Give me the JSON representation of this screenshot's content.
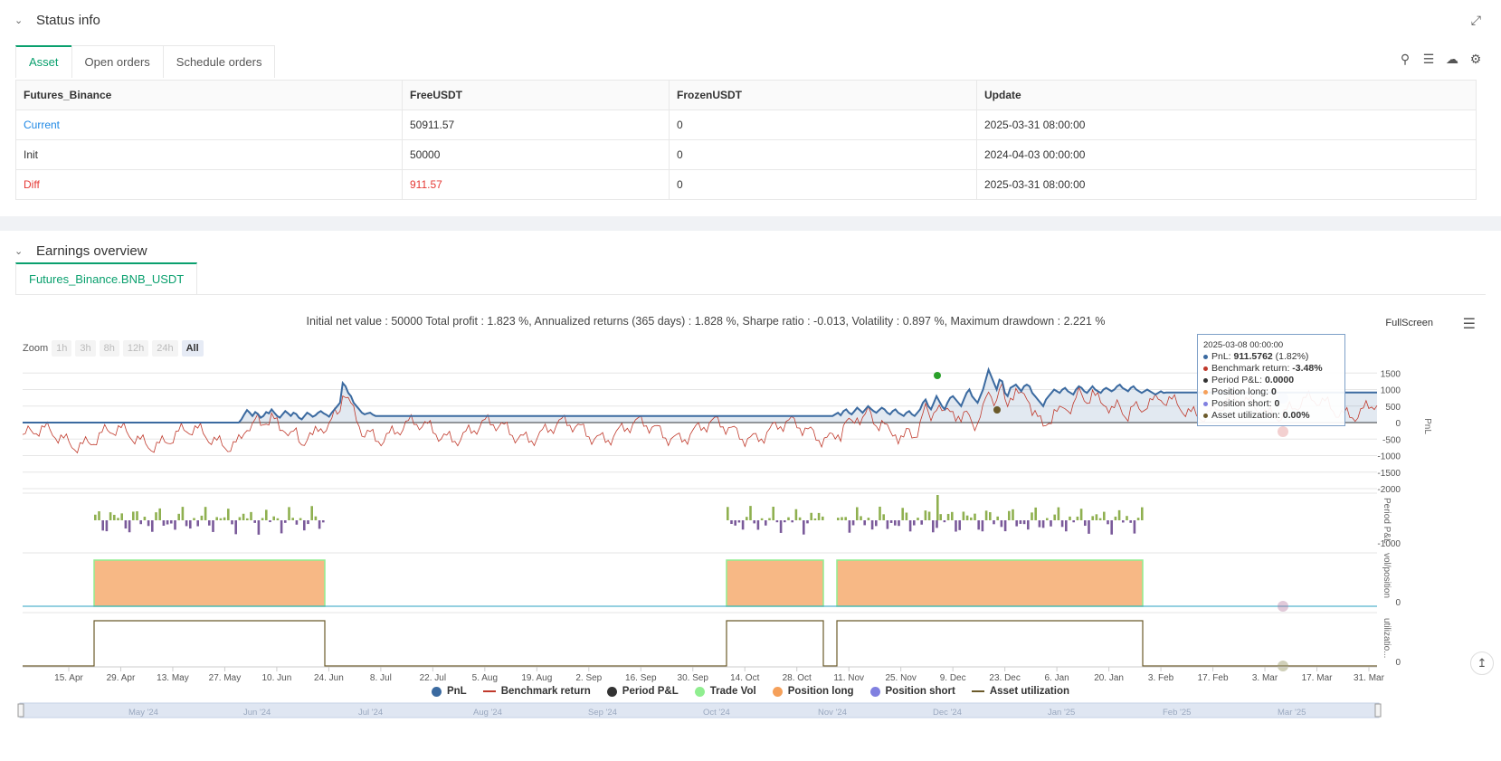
{
  "status_panel": {
    "title": "Status info",
    "tabs": [
      "Asset",
      "Open orders",
      "Schedule orders"
    ],
    "table": {
      "headers": [
        "Futures_Binance",
        "FreeUSDT",
        "FrozenUSDT",
        "Update"
      ],
      "rows": [
        [
          "Current",
          "50911.57",
          "0",
          "2025-03-31 08:00:00"
        ],
        [
          "Init",
          "50000",
          "0",
          "2024-04-03 00:00:00"
        ],
        [
          "Diff",
          "911.57",
          "0",
          "2025-03-31 08:00:00"
        ]
      ]
    },
    "icons": [
      "search-icon",
      "list-icon",
      "cloud-icon",
      "gear-icon"
    ]
  },
  "earnings_panel": {
    "title": "Earnings overview",
    "tab": "Futures_Binance.BNB_USDT",
    "summary": "Initial net value : 50000 Total profit : 1.823 %, Annualized returns (365 days) : 1.828 %, Sharpe ratio : -0.013, Volatility : 0.897 %, Maximum drawdown : 2.221 %",
    "fullscreen_label": "FullScreen",
    "zoom": {
      "label": "Zoom",
      "options": [
        "1h",
        "3h",
        "8h",
        "12h",
        "24h",
        "All"
      ],
      "selected": "All"
    },
    "tooltip": {
      "date": "2025-03-08 00:00:00",
      "rows": [
        {
          "label": "PnL: ",
          "value": "911.5762",
          "extra": " (1.82%)",
          "color": "#3b6aa0"
        },
        {
          "label": "Benchmark return: ",
          "value": "-3.48%",
          "extra": "",
          "color": "#c0392b"
        },
        {
          "label": "Period P&L: ",
          "value": "0.0000",
          "extra": "",
          "color": "#333333"
        },
        {
          "label": "Position long: ",
          "value": "0",
          "extra": "",
          "color": "#f5a05a"
        },
        {
          "label": "Position short: ",
          "value": "0",
          "extra": "",
          "color": "#8080e0"
        },
        {
          "label": "Asset utilization: ",
          "value": "0.00%",
          "extra": "",
          "color": "#6b5a2a"
        }
      ]
    },
    "legend": [
      {
        "label": "PnL",
        "kind": "circle",
        "color": "#3b6aa0"
      },
      {
        "label": "Benchmark return",
        "kind": "line",
        "color": "#c0392b"
      },
      {
        "label": "Period P&L",
        "kind": "circle",
        "color": "#333333"
      },
      {
        "label": "Trade Vol",
        "kind": "circle",
        "color": "#90ee90"
      },
      {
        "label": "Position long",
        "kind": "circle",
        "color": "#f5a05a"
      },
      {
        "label": "Position short",
        "kind": "circle",
        "color": "#8080e0"
      },
      {
        "label": "Asset utilization",
        "kind": "line",
        "color": "#6b5a2a"
      }
    ]
  },
  "chart_data": {
    "type": "line",
    "x_ticks": [
      "15. Apr",
      "29. Apr",
      "13. May",
      "27. May",
      "10. Jun",
      "24. Jun",
      "8. Jul",
      "22. Jul",
      "5. Aug",
      "19. Aug",
      "2. Sep",
      "16. Sep",
      "30. Sep",
      "14. Oct",
      "28. Oct",
      "11. Nov",
      "25. Nov",
      "9. Dec",
      "23. Dec",
      "6. Jan",
      "20. Jan",
      "3. Feb",
      "17. Feb",
      "3. Mar",
      "17. Mar",
      "31. Mar"
    ],
    "navigator_ticks": [
      "May '24",
      "Jun '24",
      "Jul '24",
      "Aug '24",
      "Sep '24",
      "Oct '24",
      "Nov '24",
      "Dec '24",
      "Jan '25",
      "Feb '25",
      "Mar '25"
    ],
    "pnl_axis": {
      "ticks": [
        1500,
        1000,
        500,
        0,
        -500,
        -1000,
        -1500,
        -2000
      ],
      "ylim": [
        -2000,
        1700
      ],
      "label": "PnL"
    },
    "period_axis": {
      "ticks": [
        -1000
      ],
      "label": "Period P&L"
    },
    "position_axis": {
      "ticks": [
        0
      ],
      "label": "vol/position"
    },
    "util_axis": {
      "ticks": [
        0
      ],
      "label": "utilizatio..."
    },
    "pnl_series": [
      0,
      0,
      0,
      0,
      0,
      0,
      0,
      0,
      0,
      0,
      0,
      0,
      0,
      0,
      0,
      0,
      0,
      0,
      0,
      0,
      0,
      0,
      0,
      0,
      0,
      0,
      0,
      0,
      0,
      0,
      0,
      0,
      0,
      0,
      0,
      0,
      0,
      0,
      0,
      0,
      0,
      0,
      0,
      0,
      0,
      0,
      0,
      0,
      0,
      0,
      0,
      0,
      0,
      0,
      0,
      0,
      0,
      0,
      0,
      0,
      0,
      0,
      0,
      0,
      0,
      0,
      0,
      0,
      0,
      0,
      0,
      0,
      0,
      0,
      0,
      0,
      0,
      0,
      0,
      0,
      100,
      250,
      380,
      300,
      200,
      320,
      260,
      150,
      200,
      320,
      280,
      400,
      300,
      200,
      150,
      250,
      350,
      280,
      200,
      300,
      260,
      150,
      100,
      200,
      300,
      250,
      180,
      220,
      300,
      350,
      280,
      240,
      180,
      300,
      400,
      500,
      600,
      1200,
      1100,
      900,
      800,
      600,
      500,
      400,
      300,
      250,
      280,
      300,
      240,
      200,
      200,
      200,
      200,
      200,
      200,
      200,
      200,
      200,
      200,
      200,
      200,
      200,
      200,
      200,
      200,
      200,
      200,
      200,
      200,
      200,
      200,
      200,
      200,
      200,
      200,
      200,
      200,
      200,
      200,
      200,
      200,
      200,
      200,
      200,
      200,
      200,
      200,
      200,
      200,
      200,
      200,
      200,
      200,
      200,
      200,
      200,
      200,
      200,
      200,
      200,
      200,
      200,
      200,
      200,
      200,
      200,
      200,
      200,
      200,
      200,
      200,
      200,
      200,
      200,
      200,
      200,
      200,
      200,
      200,
      200,
      200,
      200,
      200,
      200,
      200,
      200,
      200,
      200,
      200,
      200,
      200,
      200,
      200,
      200,
      200,
      200,
      200,
      200,
      200,
      200,
      200,
      200,
      200,
      200,
      200,
      200,
      200,
      200,
      200,
      200,
      200,
      200,
      200,
      200,
      200,
      200,
      200,
      200,
      200,
      200,
      200,
      200,
      200,
      200,
      200,
      200,
      200,
      200,
      200,
      200,
      200,
      200,
      200,
      200,
      200,
      200,
      200,
      200,
      200,
      200,
      200,
      200,
      200,
      200,
      200,
      200,
      200,
      200,
      200,
      200,
      200,
      200,
      200,
      200,
      200,
      200,
      200,
      200,
      200,
      200,
      200,
      200,
      200,
      200,
      200,
      200,
      200,
      200,
      200,
      200,
      200,
      200,
      200,
      200,
      200,
      200,
      200,
      250,
      300,
      220,
      350,
      400,
      300,
      250,
      350,
      450,
      380,
      300,
      400,
      500,
      420,
      350,
      300,
      380,
      450,
      400,
      300,
      250,
      350,
      400,
      300,
      250,
      200,
      300,
      350,
      250,
      200,
      300,
      400,
      600,
      700,
      500,
      400,
      600,
      800,
      650,
      500,
      400,
      600,
      750,
      800,
      700,
      600,
      500,
      700,
      900,
      1000,
      800,
      700,
      600,
      800,
      1000,
      1300,
      1600,
      1400,
      1200,
      1000,
      1300,
      1250,
      900,
      800,
      1050,
      1100,
      1150,
      1050,
      950,
      1100,
      1150,
      1100,
      900,
      800,
      700,
      600,
      500,
      700,
      800,
      900,
      1000,
      950,
      900,
      1000,
      1050,
      950,
      900,
      850,
      1000,
      1100,
      1050,
      950,
      900,
      1000,
      1100,
      1000,
      950,
      900,
      1000,
      1050,
      1000,
      950,
      1000,
      1100,
      1150,
      1050,
      1000,
      950,
      1050,
      1100,
      1000,
      950,
      900,
      950,
      1000,
      950,
      900,
      850,
      900,
      950,
      900,
      912,
      912,
      912,
      912,
      912,
      912,
      912,
      912,
      912,
      912,
      912,
      912,
      912,
      912,
      912,
      912,
      912,
      912,
      912,
      912,
      912,
      912,
      912,
      912,
      912,
      912,
      912,
      912,
      912,
      912,
      912,
      912,
      912,
      912,
      912,
      912,
      912,
      912,
      912,
      912,
      912,
      912,
      912,
      912,
      912,
      912,
      912,
      912,
      912,
      912,
      912,
      912,
      912,
      912,
      912,
      912,
      912,
      912,
      912,
      912,
      912,
      912,
      912,
      912,
      912,
      912,
      912,
      912,
      912,
      912,
      912,
      912,
      912,
      912,
      912,
      912,
      912,
      912
    ],
    "position_long_periods": [
      [
        "29. Apr",
        "24. Jun"
      ],
      [
        "14. Oct",
        "5. Nov"
      ],
      [
        "11. Nov",
        "3. Feb"
      ]
    ],
    "tooltip_marker_date": "2025-03-08 00:00:00"
  }
}
